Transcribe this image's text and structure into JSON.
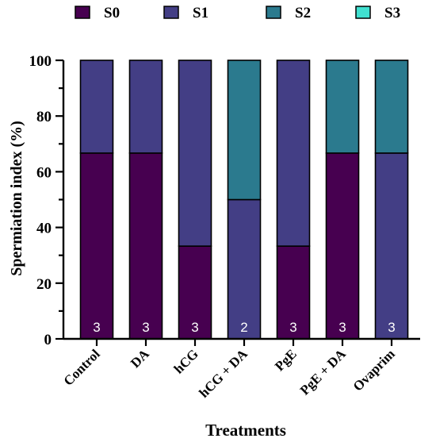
{
  "chart_data": {
    "type": "bar",
    "stacked": true,
    "xlabel": "Treatments",
    "ylabel": "Spermiation index (%)",
    "ylim": [
      0,
      100
    ],
    "yticks": [
      "0",
      "20",
      "40",
      "60",
      "80",
      "100"
    ],
    "categories": [
      "Control",
      "DA",
      "hCG",
      "hCG + DA",
      "PgE",
      "PgE + DA",
      "Ovaprim"
    ],
    "series": [
      {
        "name": "S0",
        "color": "#470050",
        "values": [
          66.7,
          66.7,
          33.3,
          0,
          33.3,
          66.7,
          0
        ]
      },
      {
        "name": "S1",
        "color": "#433E85",
        "values": [
          33.3,
          33.3,
          66.7,
          50,
          66.7,
          0,
          66.7
        ]
      },
      {
        "name": "S2",
        "color": "#2B7A8E",
        "values": [
          0,
          0,
          0,
          50,
          0,
          33.3,
          33.3
        ]
      },
      {
        "name": "S3",
        "color": "#40E0D0",
        "values": [
          0,
          0,
          0,
          0,
          0,
          0,
          0
        ]
      }
    ],
    "bar_labels": [
      "3",
      "3",
      "3",
      "2",
      "3",
      "3",
      "3"
    ],
    "legend_position": "top",
    "grid": false
  }
}
